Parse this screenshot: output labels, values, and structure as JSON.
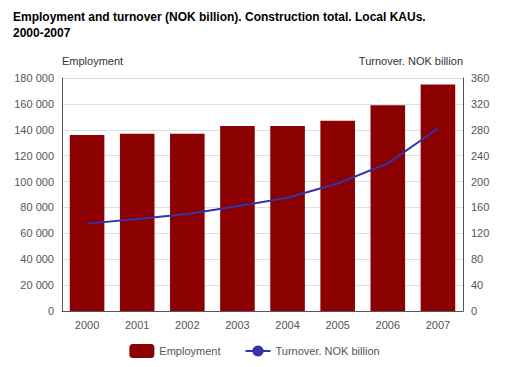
{
  "chart_data": {
    "type": "bar",
    "title": "Employment and turnover (NOK billion). Construction total. Local KAUs.",
    "subtitle": "2000-2007",
    "categories": [
      "2000",
      "2001",
      "2002",
      "2003",
      "2004",
      "2005",
      "2006",
      "2007"
    ],
    "series": [
      {
        "name": "Employment",
        "type": "bar",
        "color": "#8B0000",
        "values": [
          136000,
          137000,
          137000,
          143000,
          143000,
          147000,
          159000,
          175000
        ]
      },
      {
        "name": "Turnover. NOK billion",
        "type": "line",
        "color": "#3333AA",
        "axis": "y2",
        "values": [
          135,
          142,
          150,
          162,
          175,
          197,
          228,
          282
        ]
      }
    ],
    "y_label": "Employment",
    "y2_label": "Turnover. NOK billion",
    "ylim": [
      0,
      180000
    ],
    "yticks": [
      0,
      {
        "value": 20000,
        "label": "20 000"
      },
      {
        "value": 40000,
        "label": "40 000"
      },
      {
        "value": 60000,
        "label": "60 000"
      },
      {
        "value": 80000,
        "label": "80 000"
      },
      {
        "value": 100000,
        "label": "100 000"
      },
      {
        "value": 120000,
        "label": "120 000"
      },
      {
        "value": 140000,
        "label": "140 000"
      },
      {
        "value": 160000,
        "label": "160 000"
      },
      {
        "value": 180000,
        "label": "180 000"
      }
    ],
    "y2lim": [
      0,
      360
    ],
    "y2ticks": [
      0,
      40,
      80,
      120,
      160,
      200,
      240,
      280,
      320,
      360
    ],
    "grid": true,
    "legend": "bottom"
  }
}
